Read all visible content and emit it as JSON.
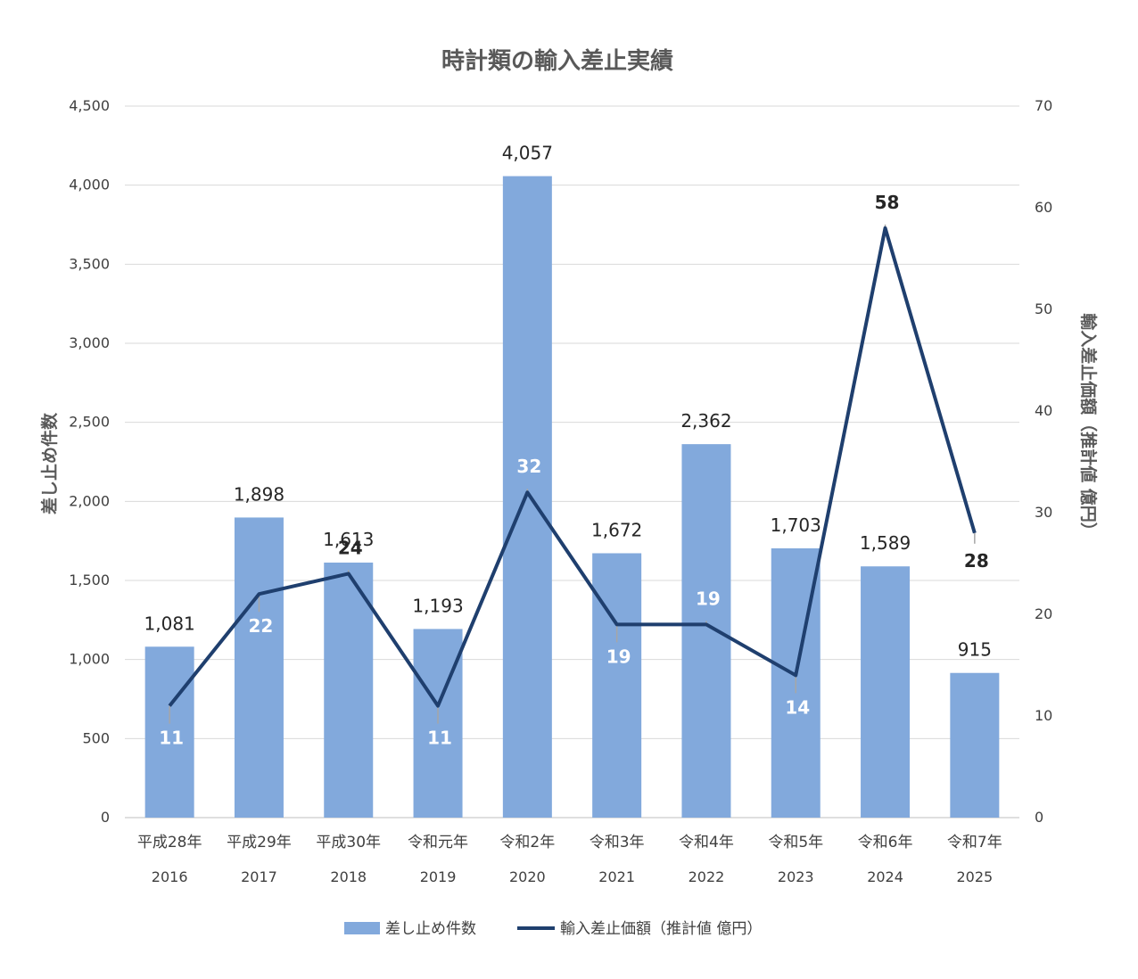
{
  "chart_data": {
    "type": "bar",
    "title": "時計類の輸入差止実績",
    "categories": [
      "平成28年",
      "平成29年",
      "平成30年",
      "令和元年",
      "令和2年",
      "令和3年",
      "令和4年",
      "令和5年",
      "令和6年",
      "令和7年"
    ],
    "years": [
      "2016",
      "2017",
      "2018",
      "2019",
      "2020",
      "2021",
      "2022",
      "2023",
      "2024",
      "2025"
    ],
    "series": [
      {
        "name": "差し止め件数",
        "type": "bar",
        "axis": "left",
        "color": "#82a9dc",
        "values": [
          1081,
          1898,
          1613,
          1193,
          4057,
          1672,
          2362,
          1703,
          1589,
          915
        ],
        "labels": [
          "1,081",
          "1,898",
          "1,613",
          "1,193",
          "4,057",
          "1,672",
          "2,362",
          "1,703",
          "1,589",
          "915"
        ]
      },
      {
        "name": "輸入差止価額（推計値 億円）",
        "type": "line",
        "axis": "right",
        "color": "#1f3f6e",
        "values": [
          11,
          22,
          24,
          11,
          32,
          19,
          19,
          14,
          58,
          28
        ],
        "labels": [
          "11",
          "22",
          "24",
          "11",
          "32",
          "19",
          "19",
          "14",
          "58",
          "28"
        ]
      }
    ],
    "y_left": {
      "label": "差し止め件数",
      "ylim": [
        0,
        4500
      ],
      "ticks": [
        0,
        500,
        1000,
        1500,
        2000,
        2500,
        3000,
        3500,
        4000,
        4500
      ],
      "tick_labels": [
        "0",
        "500",
        "1,000",
        "1,500",
        "2,000",
        "2,500",
        "3,000",
        "3,500",
        "4,000",
        "4,500"
      ]
    },
    "y_right": {
      "label": "輸入差止価額（推計値 億円）",
      "ylim": [
        0,
        70
      ],
      "ticks": [
        0,
        10,
        20,
        30,
        40,
        50,
        60,
        70
      ],
      "tick_labels": [
        "0",
        "10",
        "20",
        "30",
        "40",
        "50",
        "60",
        "70"
      ]
    },
    "grid": true,
    "legend": "bottom",
    "legend_items": [
      "差し止め件数",
      "輸入差止価額（推計値 億円）"
    ]
  }
}
